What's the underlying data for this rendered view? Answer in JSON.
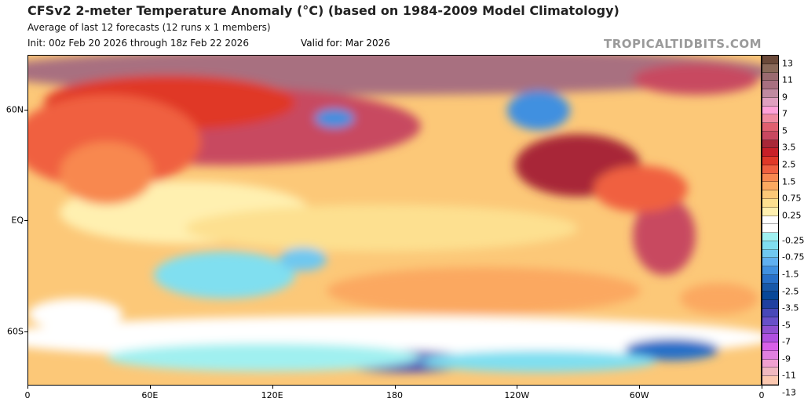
{
  "header": {
    "title": "CFSv2 2-meter Temperature Anomaly (°C) (based on 1984-2009 Model Climatology)",
    "subtitle": "Average of last 12 forecasts (12 runs x 1 members)",
    "init": "Init: 00z Feb 20 2026 through 18z Feb 22 2026",
    "valid": "Valid for: Mar 2026",
    "brand": "TROPICALTIDBITS.COM"
  },
  "map": {
    "projection": "cylindrical equidistant, centered 180",
    "lat_labels": [
      "60N",
      "EQ",
      "60S"
    ],
    "lon_labels": [
      "0",
      "60E",
      "120E",
      "180",
      "120W",
      "60W",
      "0"
    ]
  },
  "colorbar": {
    "labels": [
      "13",
      "11",
      "9",
      "7",
      "5",
      "3.5",
      "2.5",
      "1.5",
      "0.75",
      "0.25",
      "-0.25",
      "-0.75",
      "-1.5",
      "-2.5",
      "-3.5",
      "-5",
      "-7",
      "-9",
      "-11",
      "-13"
    ],
    "colors": [
      "#6b4a3a",
      "#8a6a5a",
      "#9a6a70",
      "#a87080",
      "#c08aa0",
      "#e0a0c0",
      "#ffa0d8",
      "#f08aa0",
      "#e06070",
      "#c84860",
      "#a82838",
      "#c82028",
      "#e03828",
      "#f06040",
      "#f88850",
      "#fba860",
      "#fcc878",
      "#fde090",
      "#fff0b0",
      "#ffffff",
      "#ffffff",
      "#a0f0f0",
      "#80dff0",
      "#70c8f0",
      "#60b0f0",
      "#4090e0",
      "#2870c8",
      "#1858a8",
      "#084898",
      "#2040a0",
      "#4848b8",
      "#6850c8",
      "#9050d0",
      "#b050e0",
      "#d860e8",
      "#e080e0",
      "#f0a0d0",
      "#f0b8c0",
      "#fcc8b0"
    ]
  }
}
